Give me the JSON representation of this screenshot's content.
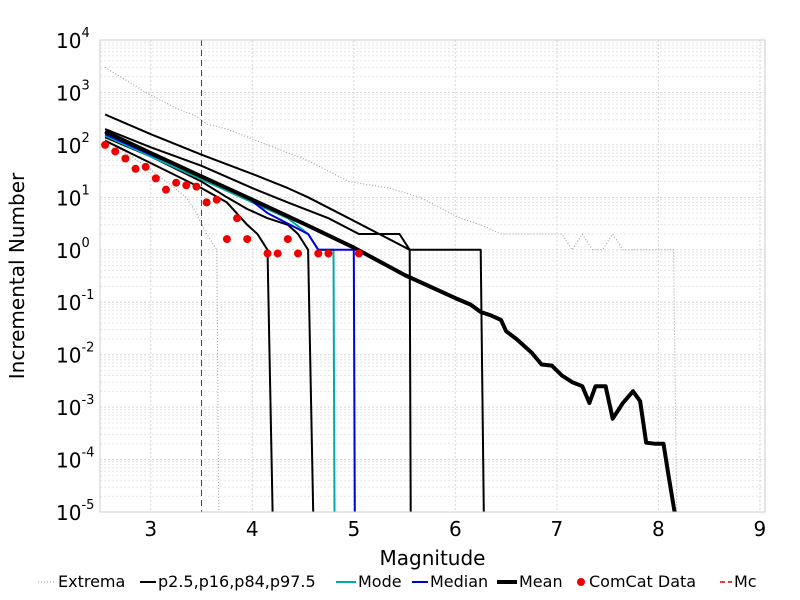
{
  "chart_data": {
    "type": "line",
    "xlabel": "Magnitude",
    "ylabel": "Incremental Number",
    "xlim": [
      2.5,
      9.05
    ],
    "ylim_log10": [
      -5,
      4
    ],
    "yscale": "log",
    "x_ticks": [
      3,
      4,
      5,
      6,
      7,
      8,
      9
    ],
    "y_ticks": [
      {
        "base": "10",
        "exp": "-5",
        "value": 1e-05
      },
      {
        "base": "10",
        "exp": "-4",
        "value": 0.0001
      },
      {
        "base": "10",
        "exp": "-3",
        "value": 0.001
      },
      {
        "base": "10",
        "exp": "-2",
        "value": 0.01
      },
      {
        "base": "10",
        "exp": "-1",
        "value": 0.1
      },
      {
        "base": "10",
        "exp": "0",
        "value": 1
      },
      {
        "base": "10",
        "exp": "1",
        "value": 10
      },
      {
        "base": "10",
        "exp": "2",
        "value": 100
      },
      {
        "base": "10",
        "exp": "3",
        "value": 1000
      },
      {
        "base": "10",
        "exp": "4",
        "value": 10000
      }
    ],
    "grid": true,
    "legend_position": "bottom",
    "legend": [
      {
        "label": "Extrema",
        "style": "dotted",
        "color": "#999999"
      },
      {
        "label": "p2.5,p16,p84,p97.5",
        "style": "solid",
        "color": "#000000"
      },
      {
        "label": "Mode",
        "style": "solid",
        "color": "#00aaaa"
      },
      {
        "label": "Median",
        "style": "solid",
        "color": "#0000dd"
      },
      {
        "label": "Mean",
        "style": "thick",
        "color": "#000000"
      },
      {
        "label": "ComCat Data",
        "style": "marker",
        "color": "#ee0000"
      },
      {
        "label": "Mc",
        "style": "dashed",
        "color": "#dd0000"
      }
    ],
    "mc": 3.5,
    "series": [
      {
        "name": "Extrema",
        "color": "#999999",
        "style": "dotted",
        "points": [
          [
            2.55,
            3000
          ],
          [
            2.7,
            2000
          ],
          [
            2.95,
            1000
          ],
          [
            3.25,
            500
          ],
          [
            3.45,
            350
          ],
          [
            3.55,
            250
          ],
          [
            3.75,
            200
          ],
          [
            4.15,
            100
          ],
          [
            4.55,
            50
          ],
          [
            4.95,
            20
          ],
          [
            5.35,
            15
          ],
          [
            5.65,
            10
          ],
          [
            5.95,
            5
          ],
          [
            6.05,
            4
          ],
          [
            6.25,
            3
          ],
          [
            6.45,
            2
          ],
          [
            7.05,
            2
          ],
          [
            7.15,
            1
          ],
          [
            7.25,
            2
          ],
          [
            7.35,
            1
          ],
          [
            7.45,
            1
          ],
          [
            7.55,
            2
          ],
          [
            7.65,
            1
          ],
          [
            8.15,
            1
          ],
          [
            8.18,
            1e-05
          ]
        ]
      },
      {
        "name": "Extrema",
        "color": "#999999",
        "style": "dotted",
        "points": [
          [
            2.55,
            130
          ],
          [
            2.75,
            70
          ],
          [
            2.95,
            40
          ],
          [
            3.15,
            20
          ],
          [
            3.35,
            10
          ],
          [
            3.45,
            5
          ],
          [
            3.55,
            2
          ],
          [
            3.65,
            1
          ],
          [
            3.67,
            1e-05
          ]
        ]
      },
      {
        "name": "p2.5,p16,p84,p97.5",
        "color": "#000000",
        "style": "solid",
        "points": [
          [
            2.55,
            380
          ],
          [
            3.0,
            160
          ],
          [
            3.5,
            65
          ],
          [
            4.0,
            28
          ],
          [
            4.35,
            15
          ],
          [
            4.55,
            10
          ],
          [
            4.95,
            4
          ],
          [
            5.25,
            2
          ],
          [
            5.55,
            1
          ],
          [
            5.56,
            1e-05
          ]
        ]
      },
      {
        "name": "p2.5,p16,p84,p97.5",
        "color": "#000000",
        "style": "solid",
        "points": [
          [
            2.55,
            200
          ],
          [
            3.0,
            90
          ],
          [
            3.5,
            40
          ],
          [
            4.0,
            15
          ],
          [
            4.35,
            8
          ],
          [
            4.75,
            4
          ],
          [
            5.05,
            2
          ],
          [
            5.45,
            2
          ],
          [
            5.55,
            1
          ],
          [
            6.25,
            1
          ],
          [
            6.28,
            1e-05
          ]
        ]
      },
      {
        "name": "p2.5,p16,p84,p97.5",
        "color": "#000000",
        "style": "solid",
        "points": [
          [
            2.55,
            140
          ],
          [
            3.0,
            60
          ],
          [
            3.5,
            20
          ],
          [
            3.75,
            10
          ],
          [
            3.95,
            6
          ],
          [
            4.15,
            4
          ],
          [
            4.35,
            3
          ],
          [
            4.45,
            2
          ],
          [
            4.55,
            1
          ],
          [
            4.6,
            1e-05
          ]
        ]
      },
      {
        "name": "p2.5,p16,p84,p97.5",
        "color": "#000000",
        "style": "solid",
        "points": [
          [
            2.55,
            120
          ],
          [
            3.0,
            45
          ],
          [
            3.5,
            15
          ],
          [
            3.75,
            8
          ],
          [
            3.95,
            3
          ],
          [
            4.05,
            2
          ],
          [
            4.15,
            1
          ],
          [
            4.2,
            1e-05
          ]
        ]
      },
      {
        "name": "Mode",
        "color": "#00aaaa",
        "style": "solid",
        "points": [
          [
            2.55,
            150
          ],
          [
            3.0,
            60
          ],
          [
            3.5,
            22
          ],
          [
            4.0,
            8
          ],
          [
            4.35,
            4
          ],
          [
            4.55,
            2
          ],
          [
            4.65,
            1
          ],
          [
            4.8,
            1
          ],
          [
            4.81,
            1e-05
          ]
        ]
      },
      {
        "name": "Median",
        "color": "#0000dd",
        "style": "solid",
        "points": [
          [
            2.55,
            160
          ],
          [
            3.0,
            65
          ],
          [
            3.5,
            25
          ],
          [
            3.95,
            10
          ],
          [
            4.15,
            5
          ],
          [
            4.55,
            2
          ],
          [
            4.65,
            1
          ],
          [
            5.0,
            1
          ],
          [
            5.01,
            1e-05
          ]
        ]
      },
      {
        "name": "Mean",
        "color": "#000000",
        "style": "thick",
        "points": [
          [
            2.55,
            180
          ],
          [
            3.0,
            70
          ],
          [
            3.5,
            25
          ],
          [
            4.0,
            9
          ],
          [
            4.5,
            3.2
          ],
          [
            5.0,
            1.1
          ],
          [
            5.5,
            0.33
          ],
          [
            6.0,
            0.12
          ],
          [
            6.15,
            0.09
          ],
          [
            6.25,
            0.065
          ],
          [
            6.35,
            0.056
          ],
          [
            6.45,
            0.046
          ],
          [
            6.5,
            0.028
          ],
          [
            6.6,
            0.02
          ],
          [
            6.75,
            0.011
          ],
          [
            6.85,
            0.0065
          ],
          [
            6.95,
            0.0062
          ],
          [
            7.05,
            0.004
          ],
          [
            7.15,
            0.003
          ],
          [
            7.25,
            0.0025
          ],
          [
            7.32,
            0.0012
          ],
          [
            7.38,
            0.0025
          ],
          [
            7.48,
            0.0025
          ],
          [
            7.55,
            0.0006
          ],
          [
            7.65,
            0.0012
          ],
          [
            7.75,
            0.002
          ],
          [
            7.82,
            0.0013
          ],
          [
            7.88,
            0.00021
          ],
          [
            7.97,
            0.0002
          ],
          [
            8.05,
            0.0002
          ],
          [
            8.1,
            5e-05
          ],
          [
            8.16,
            1e-05
          ]
        ]
      }
    ],
    "comcat_data": {
      "name": "ComCat Data",
      "color": "#ee0000",
      "points": [
        [
          2.55,
          100
        ],
        [
          2.65,
          75
        ],
        [
          2.75,
          55
        ],
        [
          2.85,
          35
        ],
        [
          2.95,
          38
        ],
        [
          3.05,
          23
        ],
        [
          3.15,
          14
        ],
        [
          3.25,
          19
        ],
        [
          3.35,
          17
        ],
        [
          3.45,
          16
        ],
        [
          3.55,
          8
        ],
        [
          3.65,
          9
        ],
        [
          3.75,
          1.6
        ],
        [
          3.85,
          4
        ],
        [
          3.95,
          1.6
        ],
        [
          4.15,
          0.85
        ],
        [
          4.25,
          0.85
        ],
        [
          4.35,
          1.6
        ],
        [
          4.45,
          0.85
        ],
        [
          4.65,
          0.85
        ],
        [
          4.75,
          0.85
        ],
        [
          5.05,
          0.85
        ]
      ]
    }
  }
}
